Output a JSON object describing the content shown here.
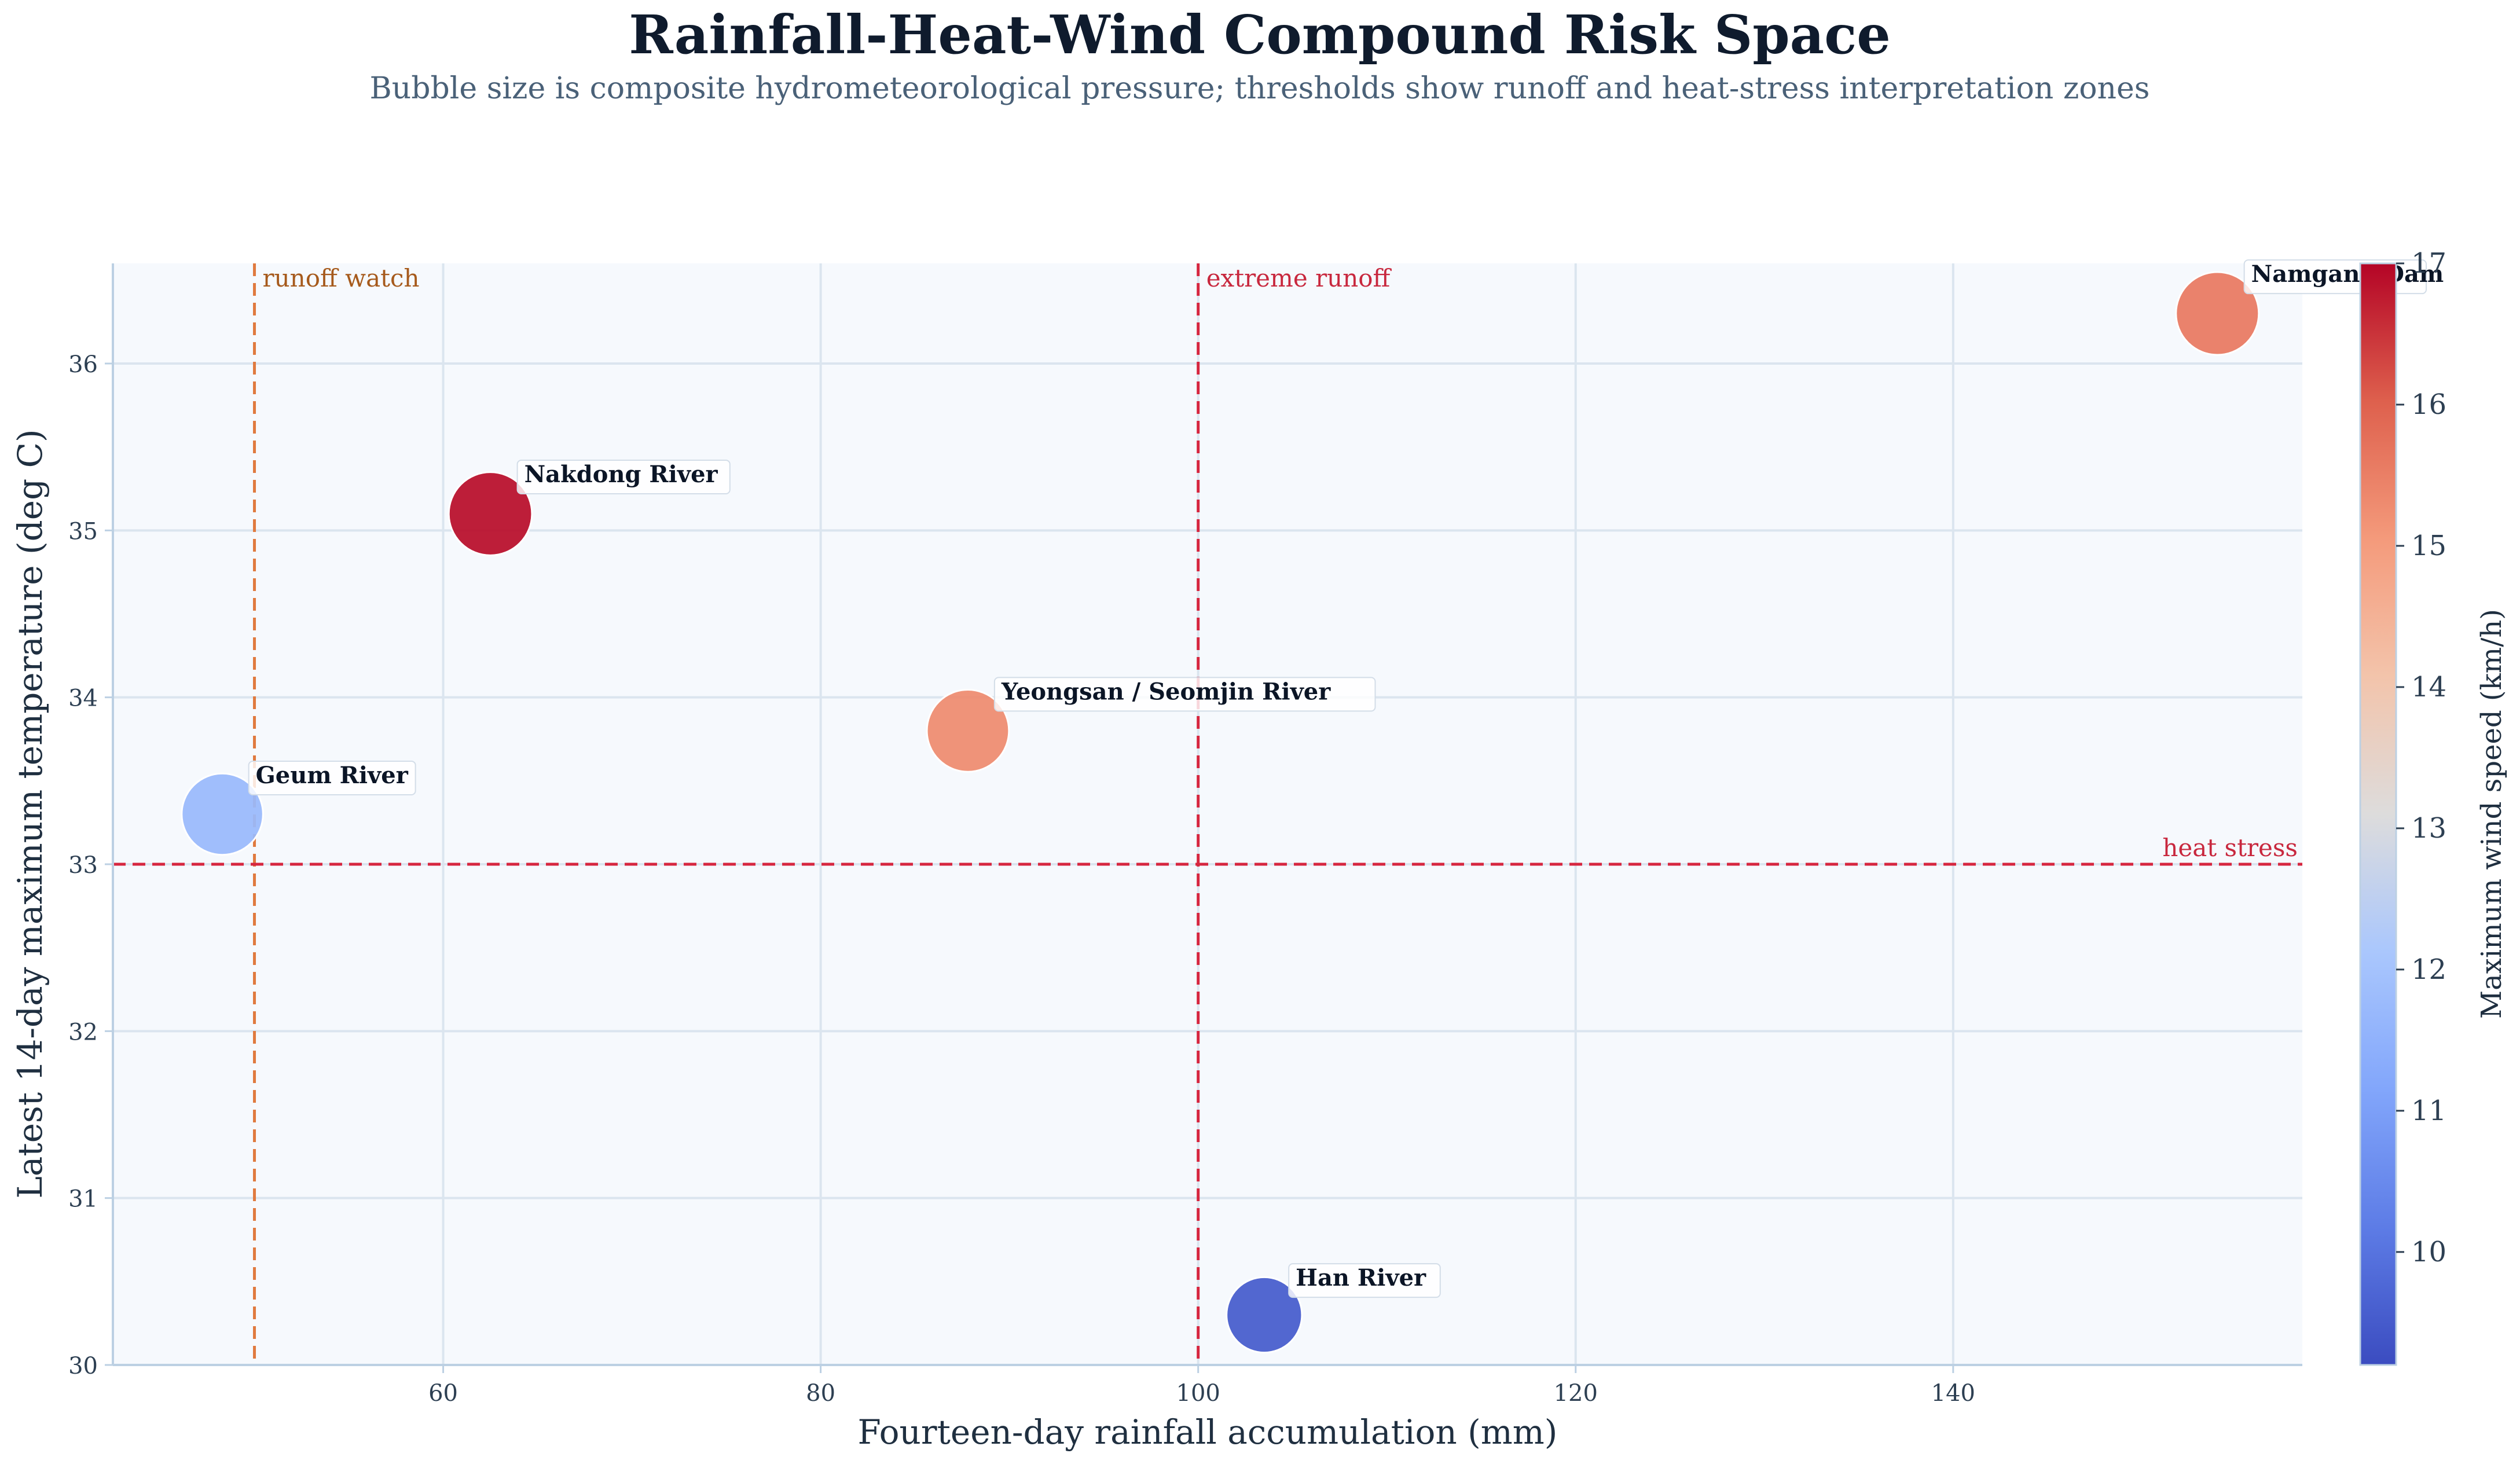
{
  "chart_data": {
    "type": "scatter",
    "title": "Rainfall-Heat-Wind Compound Risk Space",
    "subtitle": "Bubble size is composite hydrometeorological pressure; thresholds show runoff and heat-stress interpretation zones",
    "xlabel": "Fourteen-day rainfall accumulation (mm)",
    "ylabel": "Latest 14-day maximum temperature (deg C)",
    "xlim": [
      42.5,
      158.5
    ],
    "ylim": [
      30,
      36.6
    ],
    "x_ticks": [
      60,
      80,
      100,
      120,
      140
    ],
    "y_ticks": [
      30,
      31,
      32,
      33,
      34,
      35,
      36
    ],
    "grid": true,
    "points": [
      {
        "label": "Namgang Dam",
        "x": 154.0,
        "y": 36.3,
        "wind": 15.6,
        "pressure": 0.86
      },
      {
        "label": "Nakdong River",
        "x": 62.5,
        "y": 35.1,
        "wind": 16.9,
        "pressure": 0.87
      },
      {
        "label": "Yeongsan / Seomjin River",
        "x": 87.8,
        "y": 33.8,
        "wind": 15.3,
        "pressure": 0.84
      },
      {
        "label": "Geum River",
        "x": 48.3,
        "y": 33.3,
        "wind": 11.7,
        "pressure": 0.82
      },
      {
        "label": "Han River",
        "x": 103.5,
        "y": 30.3,
        "wind": 9.5,
        "pressure": 0.66
      }
    ],
    "thresholds": [
      {
        "axis": "x",
        "value": 50,
        "label": "runoff watch",
        "color": "#e07a3f",
        "label_color": "#a65a1c"
      },
      {
        "axis": "x",
        "value": 100,
        "label": "extreme runoff",
        "color": "#d6263f",
        "label_color": "#c8283e"
      },
      {
        "axis": "y",
        "value": 33,
        "label": "heat stress",
        "color": "#d6263f",
        "label_color": "#c8283e"
      }
    ],
    "colorbar": {
      "label": "Maximum wind speed (km/h)",
      "min": 9.2,
      "max": 17,
      "ticks": [
        10,
        11,
        12,
        13,
        14,
        15,
        16,
        17
      ],
      "colormap": "coolwarm"
    },
    "plot_background": "#f6f9fd",
    "grid_color": "#dbe5ef",
    "axis_color": "#bcd0e3"
  }
}
